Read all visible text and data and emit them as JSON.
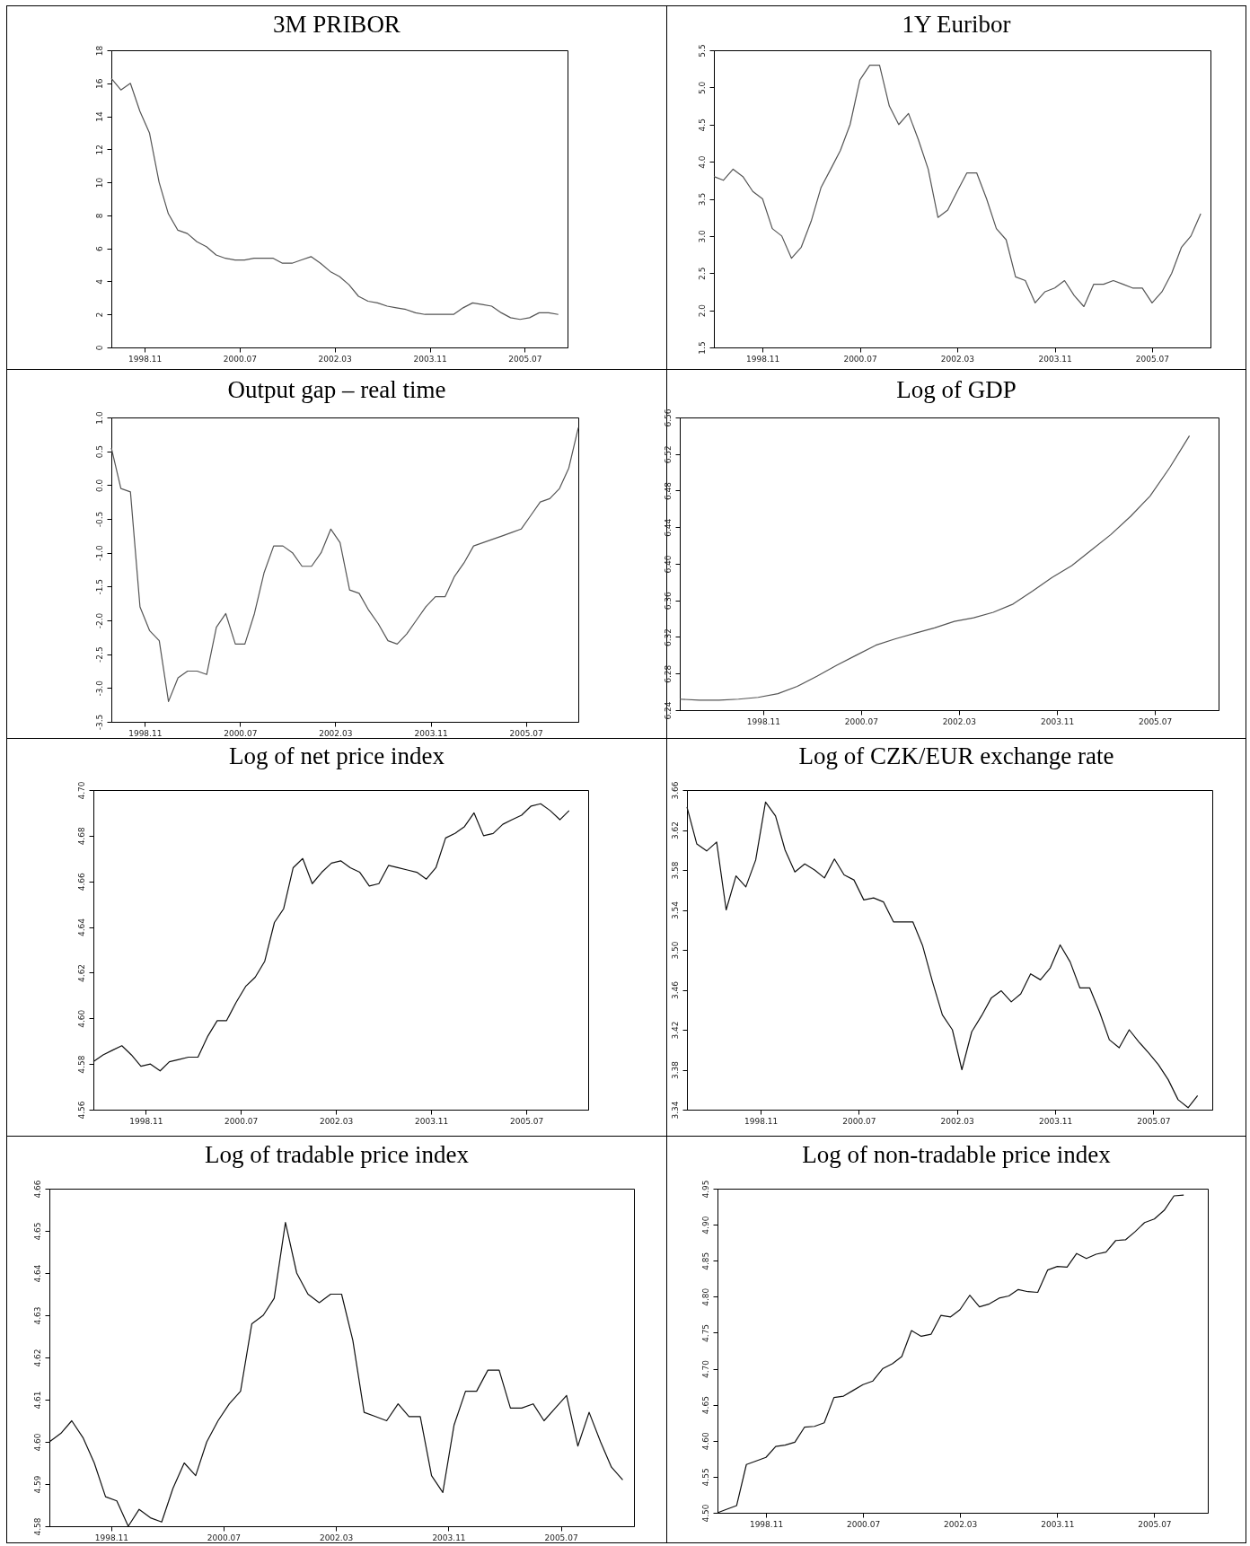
{
  "chart_data": [
    {
      "type": "line",
      "title": "3M PRIBOR",
      "color": "#555555",
      "xlim": [
        "1998-04",
        "2006-04"
      ],
      "ylim": [
        0,
        18
      ],
      "yticks": [
        0,
        2,
        4,
        6,
        8,
        10,
        12,
        14,
        16,
        18
      ],
      "xticks": [
        {
          "value": "1998-11",
          "label": "1998.11"
        },
        {
          "value": "2000-07",
          "label": "2000.07"
        },
        {
          "value": "2002-03",
          "label": "2002.03"
        },
        {
          "value": "2003-11",
          "label": "2003.11"
        },
        {
          "value": "2005-07",
          "label": "2005.07"
        }
      ],
      "x": [
        "1998-04",
        "1998-06",
        "1998-08",
        "1998-10",
        "1998-12",
        "1999-02",
        "1999-04",
        "1999-06",
        "1999-08",
        "1999-10",
        "1999-12",
        "2000-02",
        "2000-04",
        "2000-06",
        "2000-08",
        "2000-10",
        "2000-12",
        "2001-02",
        "2001-04",
        "2001-06",
        "2001-08",
        "2001-10",
        "2001-12",
        "2002-02",
        "2002-04",
        "2002-06",
        "2002-08",
        "2002-10",
        "2002-12",
        "2003-02",
        "2003-04",
        "2003-06",
        "2003-08",
        "2003-10",
        "2003-12",
        "2004-02",
        "2004-04",
        "2004-06",
        "2004-08",
        "2004-10",
        "2004-12",
        "2005-02",
        "2005-04",
        "2005-06",
        "2005-08",
        "2005-10",
        "2005-12",
        "2006-02"
      ],
      "values": [
        16.3,
        15.6,
        16.0,
        14.3,
        13.0,
        10.0,
        8.1,
        7.1,
        6.9,
        6.4,
        6.1,
        5.6,
        5.4,
        5.3,
        5.3,
        5.4,
        5.4,
        5.4,
        5.1,
        5.1,
        5.3,
        5.5,
        5.1,
        4.6,
        4.3,
        3.8,
        3.1,
        2.8,
        2.7,
        2.5,
        2.4,
        2.3,
        2.1,
        2.0,
        2.0,
        2.0,
        2.0,
        2.4,
        2.7,
        2.6,
        2.5,
        2.1,
        1.8,
        1.7,
        1.8,
        2.1,
        2.1,
        2.0
      ]
    },
    {
      "type": "line",
      "title": "1Y Euribor",
      "color": "#555555",
      "xlim": [
        "1998-01",
        "2006-07"
      ],
      "ylim": [
        1.5,
        5.5
      ],
      "yticks": [
        1.5,
        {
          "value": 2,
          "label": "2.0"
        },
        2.5,
        {
          "value": 3,
          "label": "3.0"
        },
        3.5,
        {
          "value": 4,
          "label": "4.0"
        },
        4.5,
        {
          "value": 5,
          "label": "5.0"
        },
        5.5
      ],
      "xticks": [
        {
          "value": "1998-11",
          "label": "1998.11"
        },
        {
          "value": "2000-07",
          "label": "2000.07"
        },
        {
          "value": "2002-03",
          "label": "2002.03"
        },
        {
          "value": "2003-11",
          "label": "2003.11"
        },
        {
          "value": "2005-07",
          "label": "2005.07"
        }
      ],
      "x": [
        "1998-01",
        "1998-03",
        "1998-05",
        "1998-07",
        "1998-09",
        "1998-11",
        "1999-01",
        "1999-03",
        "1999-05",
        "1999-07",
        "1999-09",
        "1999-11",
        "2000-01",
        "2000-03",
        "2000-05",
        "2000-07",
        "2000-09",
        "2000-11",
        "2001-01",
        "2001-03",
        "2001-05",
        "2001-07",
        "2001-09",
        "2001-11",
        "2002-01",
        "2002-03",
        "2002-05",
        "2002-07",
        "2002-09",
        "2002-11",
        "2003-01",
        "2003-03",
        "2003-05",
        "2003-07",
        "2003-09",
        "2003-11",
        "2004-01",
        "2004-03",
        "2004-05",
        "2004-07",
        "2004-09",
        "2004-11",
        "2005-01",
        "2005-03",
        "2005-05",
        "2005-07",
        "2005-09",
        "2005-11",
        "2006-01",
        "2006-03",
        "2006-05"
      ],
      "values": [
        3.8,
        3.75,
        3.9,
        3.8,
        3.6,
        3.5,
        3.1,
        3.0,
        2.7,
        2.85,
        3.2,
        3.65,
        3.9,
        4.15,
        4.5,
        5.1,
        5.3,
        5.3,
        4.75,
        4.5,
        4.65,
        4.3,
        3.9,
        3.25,
        3.35,
        3.6,
        3.85,
        3.85,
        3.5,
        3.1,
        2.95,
        2.45,
        2.4,
        2.1,
        2.25,
        2.3,
        2.4,
        2.2,
        2.05,
        2.35,
        2.35,
        2.4,
        2.35,
        2.3,
        2.3,
        2.1,
        2.25,
        2.5,
        2.85,
        3.0,
        3.3
      ]
    },
    {
      "type": "line",
      "title": "Output gap – real time",
      "color": "#555555",
      "xlim": [
        "1998-04",
        "2006-06"
      ],
      "ylim": [
        -3.5,
        1
      ],
      "yticks": [
        {
          "value": -3.5,
          "label": "-3.5"
        },
        {
          "value": -3,
          "label": "-3.0"
        },
        -2.5,
        {
          "value": -2,
          "label": "-2.0"
        },
        -1.5,
        {
          "value": -1,
          "label": "-1.0"
        },
        -0.5,
        {
          "value": 0,
          "label": "0.0"
        },
        0.5,
        {
          "value": 1,
          "label": "1.0"
        }
      ],
      "xticks": [
        {
          "value": "1998-11",
          "label": "1998.11"
        },
        {
          "value": "2000-07",
          "label": "2000.07"
        },
        {
          "value": "2002-03",
          "label": "2002.03"
        },
        {
          "value": "2003-11",
          "label": "2003.11"
        },
        {
          "value": "2005-07",
          "label": "2005.07"
        }
      ],
      "x": [
        "1998-04",
        "1998-06",
        "1998-08",
        "1998-10",
        "1998-12",
        "1999-02",
        "1999-04",
        "1999-06",
        "1999-08",
        "1999-10",
        "1999-12",
        "2000-02",
        "2000-04",
        "2000-06",
        "2000-08",
        "2000-10",
        "2000-12",
        "2001-02",
        "2001-04",
        "2001-06",
        "2001-08",
        "2001-10",
        "2001-12",
        "2002-02",
        "2002-04",
        "2002-06",
        "2002-08",
        "2002-10",
        "2002-12",
        "2003-02",
        "2003-04",
        "2003-06",
        "2003-08",
        "2003-10",
        "2003-12",
        "2004-02",
        "2004-04",
        "2004-06",
        "2004-08",
        "2004-10",
        "2004-12",
        "2005-02",
        "2005-04",
        "2005-06",
        "2005-08",
        "2005-10",
        "2005-12",
        "2006-02",
        "2006-04",
        "2006-06"
      ],
      "values": [
        0.55,
        -0.05,
        -0.1,
        -1.8,
        -2.15,
        -2.3,
        -3.2,
        -2.85,
        -2.75,
        -2.75,
        -2.8,
        -2.1,
        -1.9,
        -2.35,
        -2.35,
        -1.9,
        -1.3,
        -0.9,
        -0.9,
        -1.0,
        -1.2,
        -1.2,
        -1.0,
        -0.65,
        -0.85,
        -1.55,
        -1.6,
        -1.85,
        -2.05,
        -2.3,
        -2.35,
        -2.2,
        -2.0,
        -1.8,
        -1.65,
        -1.65,
        -1.35,
        -1.15,
        -0.9,
        -0.85,
        -0.8,
        -0.75,
        -0.7,
        -0.65,
        -0.45,
        -0.25,
        -0.2,
        -0.05,
        0.25,
        0.85
      ]
    },
    {
      "type": "line",
      "title": "Log of GDP",
      "color": "#555555",
      "xlim": [
        "1997-06",
        "2006-08"
      ],
      "ylim": [
        6.24,
        6.56
      ],
      "yticks": [
        6.24,
        6.28,
        6.32,
        6.36,
        {
          "value": 6.4,
          "label": "6.40"
        },
        6.44,
        6.48,
        6.52,
        6.56
      ],
      "xticks": [
        {
          "value": "1998-11",
          "label": "1998.11"
        },
        {
          "value": "2000-07",
          "label": "2000.07"
        },
        {
          "value": "2002-03",
          "label": "2002.03"
        },
        {
          "value": "2003-11",
          "label": "2003.11"
        },
        {
          "value": "2005-07",
          "label": "2005.07"
        }
      ],
      "x": [
        "1997-06",
        "1997-10",
        "1998-02",
        "1998-06",
        "1998-10",
        "1999-02",
        "1999-06",
        "1999-10",
        "2000-02",
        "2000-06",
        "2000-10",
        "2001-02",
        "2001-06",
        "2001-10",
        "2002-02",
        "2002-06",
        "2002-10",
        "2003-02",
        "2003-06",
        "2003-10",
        "2004-02",
        "2004-06",
        "2004-10",
        "2005-02",
        "2005-06",
        "2005-10",
        "2006-02"
      ],
      "values": [
        6.252,
        6.251,
        6.251,
        6.252,
        6.254,
        6.258,
        6.266,
        6.277,
        6.289,
        6.3,
        6.311,
        6.318,
        6.324,
        6.33,
        6.337,
        6.341,
        6.347,
        6.356,
        6.37,
        6.385,
        6.398,
        6.415,
        6.432,
        6.452,
        6.474,
        6.505,
        6.54
      ]
    },
    {
      "type": "line",
      "title": "Log of net price index",
      "color": "#111111",
      "xlim": [
        "1997-12",
        "2006-08"
      ],
      "ylim": [
        4.56,
        4.7
      ],
      "yticks": [
        4.56,
        4.58,
        {
          "value": 4.6,
          "label": "4.60"
        },
        4.62,
        4.64,
        4.66,
        4.68,
        {
          "value": 4.7,
          "label": "4.70"
        }
      ],
      "xticks": [
        {
          "value": "1998-11",
          "label": "1998.11"
        },
        {
          "value": "2000-07",
          "label": "2000.07"
        },
        {
          "value": "2002-03",
          "label": "2002.03"
        },
        {
          "value": "2003-11",
          "label": "2003.11"
        },
        {
          "value": "2005-07",
          "label": "2005.07"
        }
      ],
      "x": [
        "1997-12",
        "1998-02",
        "1998-04",
        "1998-06",
        "1998-08",
        "1998-10",
        "1998-12",
        "1999-02",
        "1999-04",
        "1999-06",
        "1999-08",
        "1999-10",
        "1999-12",
        "2000-02",
        "2000-04",
        "2000-06",
        "2000-08",
        "2000-10",
        "2000-12",
        "2001-02",
        "2001-04",
        "2001-06",
        "2001-08",
        "2001-10",
        "2001-12",
        "2002-02",
        "2002-04",
        "2002-06",
        "2002-08",
        "2002-10",
        "2002-12",
        "2003-02",
        "2003-04",
        "2003-06",
        "2003-08",
        "2003-10",
        "2003-12",
        "2004-02",
        "2004-04",
        "2004-06",
        "2004-08",
        "2004-10",
        "2004-12",
        "2005-02",
        "2005-04",
        "2005-06",
        "2005-08",
        "2005-10",
        "2005-12",
        "2006-02",
        "2006-04"
      ],
      "values": [
        4.581,
        4.584,
        4.586,
        4.588,
        4.584,
        4.579,
        4.58,
        4.577,
        4.581,
        4.582,
        4.583,
        4.583,
        4.592,
        4.599,
        4.599,
        4.607,
        4.614,
        4.618,
        4.625,
        4.642,
        4.648,
        4.666,
        4.67,
        4.659,
        4.664,
        4.668,
        4.669,
        4.666,
        4.664,
        4.658,
        4.659,
        4.667,
        4.666,
        4.665,
        4.664,
        4.661,
        4.666,
        4.679,
        4.681,
        4.684,
        4.69,
        4.68,
        4.681,
        4.685,
        4.687,
        4.689,
        4.693,
        4.694,
        4.691,
        4.687,
        4.691
      ]
    },
    {
      "type": "line",
      "title": "Log of CZK/EUR exchange rate",
      "color": "#111111",
      "xlim": [
        "1997-08",
        "2006-07"
      ],
      "ylim": [
        3.34,
        3.66
      ],
      "yticks": [
        3.34,
        3.38,
        3.42,
        3.46,
        {
          "value": 3.5,
          "label": "3.50"
        },
        3.54,
        3.58,
        3.62,
        3.66
      ],
      "xticks": [
        {
          "value": "1998-11",
          "label": "1998.11"
        },
        {
          "value": "2000-07",
          "label": "2000.07"
        },
        {
          "value": "2002-03",
          "label": "2002.03"
        },
        {
          "value": "2003-11",
          "label": "2003.11"
        },
        {
          "value": "2005-07",
          "label": "2005.07"
        }
      ],
      "x": [
        "1997-08",
        "1997-10",
        "1997-12",
        "1998-02",
        "1998-04",
        "1998-06",
        "1998-08",
        "1998-10",
        "1998-12",
        "1999-02",
        "1999-04",
        "1999-06",
        "1999-08",
        "1999-10",
        "1999-12",
        "2000-02",
        "2000-04",
        "2000-06",
        "2000-08",
        "2000-10",
        "2000-12",
        "2001-02",
        "2001-04",
        "2001-06",
        "2001-08",
        "2001-10",
        "2001-12",
        "2002-02",
        "2002-04",
        "2002-06",
        "2002-08",
        "2002-10",
        "2002-12",
        "2003-02",
        "2003-04",
        "2003-06",
        "2003-08",
        "2003-10",
        "2003-12",
        "2004-02",
        "2004-04",
        "2004-06",
        "2004-08",
        "2004-10",
        "2004-12",
        "2005-02",
        "2005-04",
        "2005-06",
        "2005-08",
        "2005-10",
        "2005-12",
        "2006-02",
        "2006-04"
      ],
      "values": [
        3.643,
        3.606,
        3.599,
        3.608,
        3.54,
        3.574,
        3.563,
        3.59,
        3.648,
        3.634,
        3.6,
        3.578,
        3.586,
        3.58,
        3.572,
        3.591,
        3.575,
        3.57,
        3.55,
        3.552,
        3.548,
        3.528,
        3.528,
        3.528,
        3.504,
        3.468,
        3.435,
        3.42,
        3.38,
        3.418,
        3.434,
        3.452,
        3.459,
        3.448,
        3.456,
        3.476,
        3.47,
        3.482,
        3.505,
        3.488,
        3.462,
        3.462,
        3.438,
        3.41,
        3.402,
        3.42,
        3.408,
        3.397,
        3.385,
        3.37,
        3.35,
        3.342,
        3.354
      ]
    },
    {
      "type": "line",
      "title": "Log of tradable price index",
      "color": "#111111",
      "xlim": [
        "1997-12",
        "2006-08"
      ],
      "ylim": [
        4.58,
        4.66
      ],
      "yticks": [
        4.58,
        4.59,
        {
          "value": 4.6,
          "label": "4.60"
        },
        4.61,
        4.62,
        4.63,
        4.64,
        4.65,
        4.66
      ],
      "xticks": [
        {
          "value": "1998-11",
          "label": "1998.11"
        },
        {
          "value": "2000-07",
          "label": "2000.07"
        },
        {
          "value": "2002-03",
          "label": "2002.03"
        },
        {
          "value": "2003-11",
          "label": "2003.11"
        },
        {
          "value": "2005-07",
          "label": "2005.07"
        }
      ],
      "x": [
        "1997-12",
        "1998-02",
        "1998-04",
        "1998-06",
        "1998-08",
        "1998-10",
        "1998-12",
        "1999-02",
        "1999-04",
        "1999-06",
        "1999-08",
        "1999-10",
        "1999-12",
        "2000-02",
        "2000-04",
        "2000-06",
        "2000-08",
        "2000-10",
        "2000-12",
        "2001-02",
        "2001-04",
        "2001-06",
        "2001-08",
        "2001-10",
        "2001-12",
        "2002-02",
        "2002-04",
        "2002-06",
        "2002-08",
        "2002-10",
        "2002-12",
        "2003-02",
        "2003-04",
        "2003-06",
        "2003-08",
        "2003-10",
        "2003-12",
        "2004-02",
        "2004-04",
        "2004-06",
        "2004-08",
        "2004-10",
        "2004-12",
        "2005-02",
        "2005-04",
        "2005-06",
        "2005-08",
        "2005-10",
        "2005-12",
        "2006-02",
        "2006-04",
        "2006-06"
      ],
      "values": [
        4.6,
        4.602,
        4.605,
        4.601,
        4.595,
        4.587,
        4.586,
        4.58,
        4.584,
        4.582,
        4.581,
        4.589,
        4.595,
        4.592,
        4.6,
        4.605,
        4.609,
        4.612,
        4.628,
        4.63,
        4.634,
        4.652,
        4.64,
        4.635,
        4.633,
        4.635,
        4.635,
        4.624,
        4.607,
        4.606,
        4.605,
        4.609,
        4.606,
        4.606,
        4.592,
        4.588,
        4.604,
        4.612,
        4.612,
        4.617,
        4.617,
        4.608,
        4.608,
        4.609,
        4.605,
        4.608,
        4.611,
        4.599,
        4.607,
        4.6,
        4.594,
        4.591
      ]
    },
    {
      "type": "line",
      "title": "Log of non-tradable price index",
      "color": "#111111",
      "xlim": [
        "1998-01",
        "2006-06"
      ],
      "ylim": [
        4.5,
        4.95
      ],
      "yticks": [
        {
          "value": 4.5,
          "label": "4.50"
        },
        4.55,
        {
          "value": 4.6,
          "label": "4.60"
        },
        4.65,
        {
          "value": 4.7,
          "label": "4.70"
        },
        4.75,
        {
          "value": 4.8,
          "label": "4.80"
        },
        4.85,
        {
          "value": 4.9,
          "label": "4.90"
        },
        4.95
      ],
      "xticks": [
        {
          "value": "1998-11",
          "label": "1998.11"
        },
        {
          "value": "2000-07",
          "label": "2000.07"
        },
        {
          "value": "2002-03",
          "label": "2002.03"
        },
        {
          "value": "2003-11",
          "label": "2003.11"
        },
        {
          "value": "2005-07",
          "label": "2005.07"
        }
      ],
      "x": [
        "1998-01",
        "1998-03",
        "1998-05",
        "1998-07",
        "1998-09",
        "1998-11",
        "1999-01",
        "1999-03",
        "1999-05",
        "1999-07",
        "1999-09",
        "1999-11",
        "2000-01",
        "2000-03",
        "2000-05",
        "2000-07",
        "2000-09",
        "2000-11",
        "2001-01",
        "2001-03",
        "2001-05",
        "2001-07",
        "2001-09",
        "2001-11",
        "2002-01",
        "2002-03",
        "2002-05",
        "2002-07",
        "2002-09",
        "2002-11",
        "2003-01",
        "2003-03",
        "2003-05",
        "2003-07",
        "2003-09",
        "2003-11",
        "2004-01",
        "2004-03",
        "2004-05",
        "2004-07",
        "2004-09",
        "2004-11",
        "2005-01",
        "2005-03",
        "2005-05",
        "2005-07",
        "2005-09",
        "2005-11",
        "2006-01"
      ],
      "values": [
        4.5,
        4.505,
        4.51,
        4.567,
        4.572,
        4.577,
        4.592,
        4.594,
        4.598,
        4.619,
        4.62,
        4.625,
        4.66,
        4.662,
        4.67,
        4.678,
        4.683,
        4.7,
        4.707,
        4.717,
        4.753,
        4.745,
        4.748,
        4.774,
        4.772,
        4.782,
        4.802,
        4.786,
        4.79,
        4.798,
        4.801,
        4.81,
        4.807,
        4.806,
        4.837,
        4.842,
        4.841,
        4.86,
        4.853,
        4.859,
        4.862,
        4.878,
        4.879,
        4.89,
        4.903,
        4.908,
        4.92,
        4.94,
        4.941
      ]
    }
  ]
}
